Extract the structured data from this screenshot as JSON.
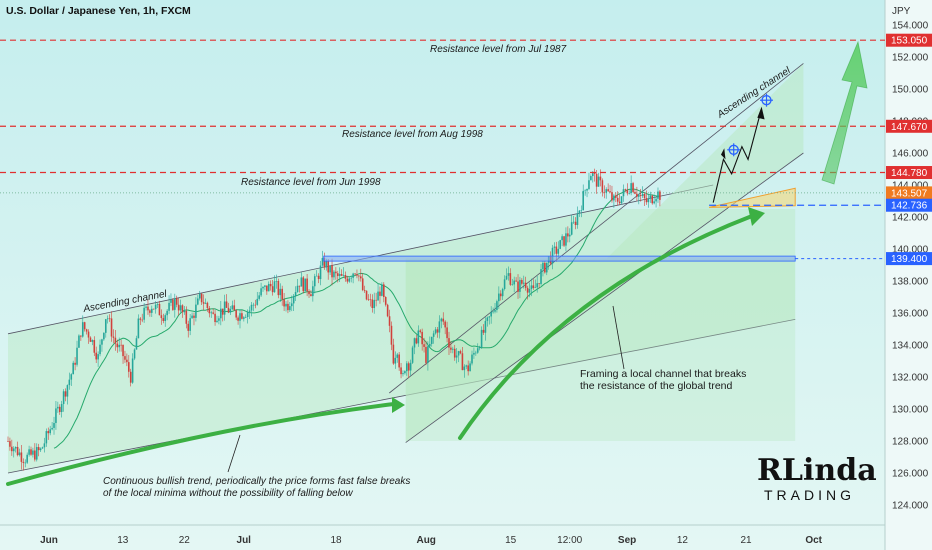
{
  "chart_data": {
    "type": "candlestick",
    "title": "U.S. Dollar / Japanese Yen, 1h, FXCM",
    "currency": "JPY",
    "y_axis": {
      "range": [
        122.5,
        156.5
      ],
      "ticks": [
        124,
        126,
        128,
        130,
        132,
        134,
        136,
        138,
        140,
        142,
        144,
        146,
        148,
        150,
        152,
        154
      ],
      "tick_labels": [
        "124.000",
        "126.000",
        "128.000",
        "130.000",
        "132.000",
        "134.000",
        "136.000",
        "138.000",
        "140.000",
        "142.000",
        "144.000",
        "146.000",
        "148.000",
        "150.000",
        "152.000",
        "154.000"
      ]
    },
    "x_axis": {
      "labels": [
        "Jun",
        "13",
        "22",
        "Jul",
        "18",
        "Aug",
        "15",
        "12:00",
        "Sep",
        "12",
        "21",
        "Oct"
      ],
      "bold": [
        "Jun",
        "Jul",
        "Aug",
        "Sep",
        "Oct"
      ]
    },
    "price_path": [
      [
        0,
        128.0
      ],
      [
        0.04,
        126.9
      ],
      [
        0.08,
        127.4
      ],
      [
        0.12,
        129.8
      ],
      [
        0.16,
        132.6
      ],
      [
        0.18,
        135.2
      ],
      [
        0.2,
        134.6
      ],
      [
        0.22,
        133.2
      ],
      [
        0.24,
        136.0
      ],
      [
        0.26,
        134.2
      ],
      [
        0.28,
        133.4
      ],
      [
        0.3,
        132.0
      ],
      [
        0.32,
        135.6
      ],
      [
        0.35,
        136.5
      ],
      [
        0.38,
        135.9
      ],
      [
        0.41,
        136.8
      ],
      [
        0.44,
        135.2
      ],
      [
        0.47,
        137.0
      ],
      [
        0.5,
        135.8
      ],
      [
        0.53,
        136.3
      ],
      [
        0.56,
        135.9
      ],
      [
        0.59,
        136.2
      ],
      [
        0.62,
        137.4
      ],
      [
        0.65,
        137.8
      ],
      [
        0.68,
        136.4
      ],
      [
        0.71,
        138.0
      ],
      [
        0.74,
        137.4
      ],
      [
        0.77,
        139.2
      ],
      [
        0.79,
        138.4
      ],
      [
        0.82,
        138.1
      ],
      [
        0.85,
        138.8
      ],
      [
        0.87,
        137.0
      ],
      [
        0.89,
        136.4
      ],
      [
        0.91,
        137.6
      ],
      [
        0.93,
        135.0
      ],
      [
        0.94,
        133.2
      ],
      [
        0.95,
        133.9
      ],
      [
        0.96,
        131.5
      ],
      [
        0.97,
        133.0
      ],
      [
        0.98,
        132.8
      ],
      [
        1.0,
        134.9
      ],
      [
        1.02,
        133.2
      ],
      [
        1.04,
        134.8
      ],
      [
        1.06,
        135.6
      ],
      [
        1.08,
        133.8
      ],
      [
        1.1,
        133.2
      ],
      [
        1.12,
        132.4
      ],
      [
        1.14,
        133.7
      ],
      [
        1.16,
        134.8
      ],
      [
        1.18,
        136.0
      ],
      [
        1.2,
        137.4
      ],
      [
        1.22,
        138.4
      ],
      [
        1.24,
        137.6
      ],
      [
        1.26,
        138.0
      ],
      [
        1.28,
        137.2
      ],
      [
        1.3,
        138.5
      ],
      [
        1.32,
        139.4
      ],
      [
        1.34,
        140.0
      ],
      [
        1.36,
        140.7
      ],
      [
        1.38,
        141.5
      ],
      [
        1.4,
        143.0
      ],
      [
        1.42,
        144.8
      ],
      [
        1.44,
        144.1
      ],
      [
        1.46,
        143.6
      ],
      [
        1.48,
        142.9
      ],
      [
        1.5,
        143.4
      ],
      [
        1.52,
        144.1
      ],
      [
        1.54,
        143.3
      ],
      [
        1.56,
        142.9
      ],
      [
        1.58,
        143.5
      ],
      [
        1.59,
        143.4
      ]
    ],
    "resistance_levels": [
      {
        "label": "Resistance level from Jul 1987",
        "price": 153.05,
        "badge": "153.050"
      },
      {
        "label": "Resistance level from Aug 1998",
        "price": 147.67,
        "badge": "147.670"
      },
      {
        "label": "Resistance level from Jun 1998",
        "price": 144.78,
        "badge": "144.780"
      }
    ],
    "price_badges": [
      {
        "value": "143.507",
        "price": 143.507,
        "color": "#f07a1e"
      },
      {
        "value": "142.736",
        "price": 142.736,
        "color": "#2962ff"
      },
      {
        "value": "139.400",
        "price": 139.4,
        "color": "#2962ff"
      }
    ],
    "colors": {
      "resistance": "#e03030",
      "support": "#2962ff",
      "channel_fill": "#b8e8c0",
      "arrow": "#3cb043",
      "moving_average": "#26a96c",
      "up_candle": "#26a69a",
      "down_candle": "#d1403b"
    },
    "annotations": {
      "ascending_channel_global": "Ascending channel",
      "ascending_channel_local": "Ascending channel",
      "local_channel_note_line1": "Framing a local channel that breaks",
      "local_channel_note_line2": "the resistance of the global trend",
      "trend_note_line1": "Continuous bullish trend, periodically the price forms fast false breaks",
      "trend_note_line2": "of the local minima without the possibility of falling below"
    },
    "logo": {
      "main": "RLinda",
      "sub": "TRADING"
    }
  }
}
